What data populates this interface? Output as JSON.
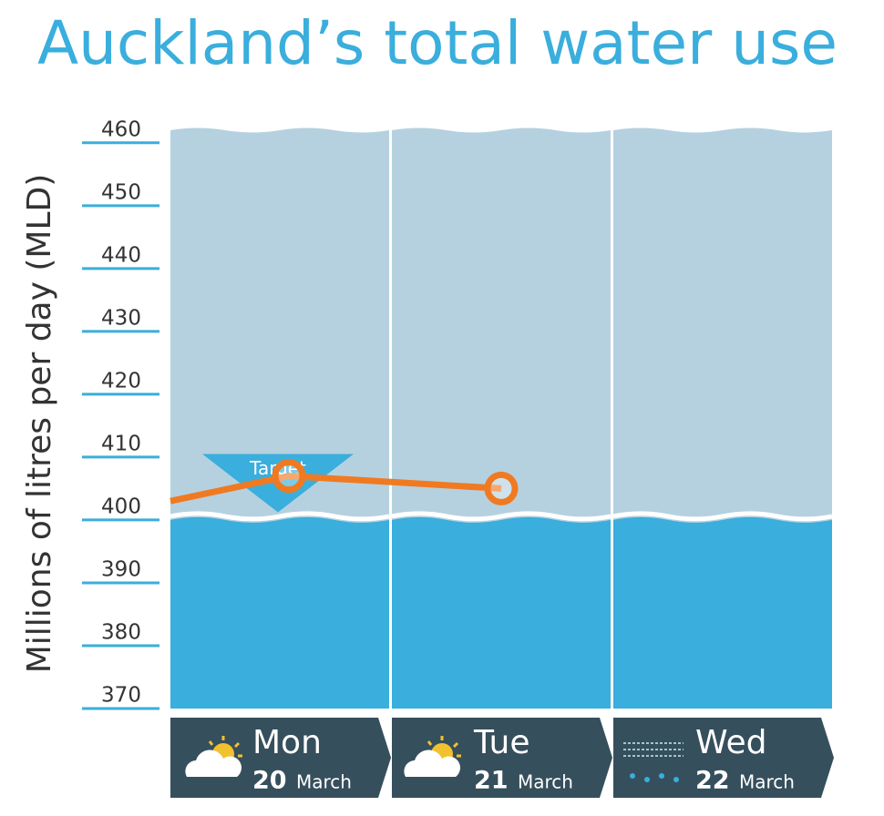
{
  "chart_data": {
    "type": "line",
    "title": "Auckland’s total water use",
    "y_axis_label": "Millions of litres per day (MLD)",
    "categories": [
      "Mon",
      "Tue",
      "Wed"
    ],
    "day_numbers": [
      "20",
      "21",
      "22"
    ],
    "months": [
      "March",
      "March",
      "March"
    ],
    "ylim": [
      370,
      462
    ],
    "yticks": [
      370,
      380,
      390,
      400,
      410,
      420,
      430,
      440,
      450,
      460
    ],
    "water_level": 400,
    "water_color": "#3aaedc",
    "sky_color": "#b5d1e0",
    "target": {
      "label": "Target",
      "value": 406,
      "color": "#3aaedc"
    },
    "series": [
      {
        "color": "#f07a22",
        "lead_in": 403,
        "values": [
          407,
          405,
          null
        ]
      }
    ]
  }
}
